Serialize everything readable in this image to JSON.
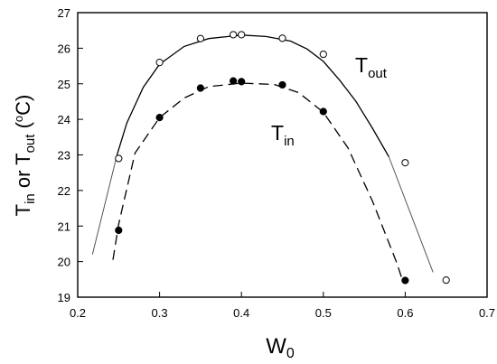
{
  "chart_data": {
    "type": "scatter",
    "xlabel": {
      "base": "W",
      "sub": "0"
    },
    "ylabel": {
      "p1": "T",
      "s1": "in",
      "p2": " or T",
      "s2": "out",
      "p3": " (",
      "sup": "o",
      "p4": "C)"
    },
    "xlim": [
      0.2,
      0.7
    ],
    "ylim": [
      19,
      27
    ],
    "x_ticks": [
      "0.2",
      "0.3",
      "0.4",
      "0.5",
      "0.6",
      "0.7"
    ],
    "y_ticks": [
      "19",
      "20",
      "21",
      "22",
      "23",
      "24",
      "25",
      "26",
      "27"
    ],
    "grid": false,
    "series": [
      {
        "name": "T_out",
        "label": {
          "base": "T",
          "sub": "out"
        },
        "marker": "open-circle",
        "points": [
          [
            0.25,
            22.9
          ],
          [
            0.3,
            25.6
          ],
          [
            0.35,
            26.27
          ],
          [
            0.39,
            26.38
          ],
          [
            0.4,
            26.38
          ],
          [
            0.45,
            26.28
          ],
          [
            0.5,
            25.83
          ],
          [
            0.6,
            22.78
          ],
          [
            0.65,
            19.48
          ]
        ],
        "fit_line": "solid",
        "fit": [
          [
            0.248,
            23.0
          ],
          [
            0.26,
            23.9
          ],
          [
            0.28,
            24.9
          ],
          [
            0.3,
            25.55
          ],
          [
            0.33,
            26.05
          ],
          [
            0.36,
            26.27
          ],
          [
            0.4,
            26.37
          ],
          [
            0.43,
            26.33
          ],
          [
            0.46,
            26.2
          ],
          [
            0.48,
            25.98
          ],
          [
            0.5,
            25.63
          ],
          [
            0.52,
            25.1
          ],
          [
            0.54,
            24.5
          ],
          [
            0.56,
            23.75
          ],
          [
            0.58,
            22.95
          ]
        ],
        "tails": [
          [
            [
              0.218,
              20.2
            ],
            [
              0.248,
              23.0
            ]
          ],
          [
            [
              0.58,
              22.95
            ],
            [
              0.634,
              19.7
            ]
          ]
        ]
      },
      {
        "name": "T_in",
        "label": {
          "base": "T",
          "sub": "in"
        },
        "marker": "filled-circle",
        "points": [
          [
            0.25,
            20.88
          ],
          [
            0.3,
            24.05
          ],
          [
            0.35,
            24.88
          ],
          [
            0.39,
            25.08
          ],
          [
            0.4,
            25.06
          ],
          [
            0.45,
            24.97
          ],
          [
            0.5,
            24.22
          ],
          [
            0.6,
            19.47
          ]
        ],
        "fit_line": "dashed",
        "fit": [
          [
            0.243,
            20.05
          ],
          [
            0.25,
            21.05
          ],
          [
            0.27,
            23.05
          ],
          [
            0.3,
            24.05
          ],
          [
            0.33,
            24.6
          ],
          [
            0.36,
            24.92
          ],
          [
            0.4,
            25.02
          ],
          [
            0.44,
            24.98
          ],
          [
            0.47,
            24.75
          ],
          [
            0.5,
            24.2
          ],
          [
            0.53,
            23.2
          ],
          [
            0.56,
            21.7
          ],
          [
            0.59,
            19.95
          ],
          [
            0.597,
            19.45
          ]
        ]
      }
    ]
  }
}
